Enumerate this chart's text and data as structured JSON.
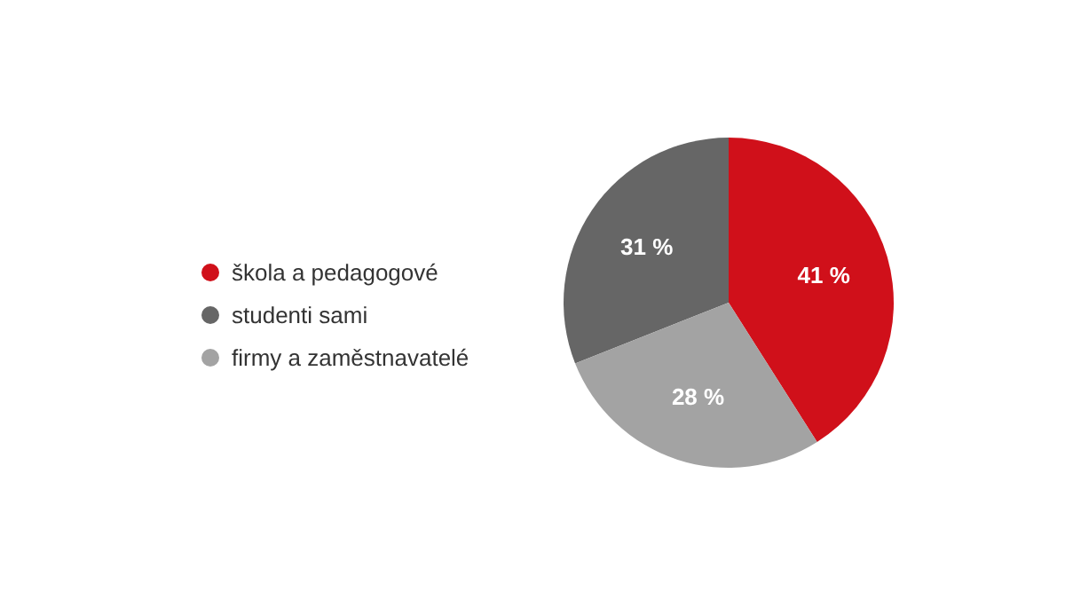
{
  "chart_data": {
    "type": "pie",
    "categories": [
      "škola a pedagogové",
      "studenti sami",
      "firmy a zaměstnavatelé"
    ],
    "values": [
      41,
      31,
      28
    ],
    "colors": [
      "#d0101a",
      "#666666",
      "#a3a3a3"
    ],
    "value_labels": [
      "41 %",
      "31 %",
      "28 %"
    ],
    "legend": "left"
  }
}
